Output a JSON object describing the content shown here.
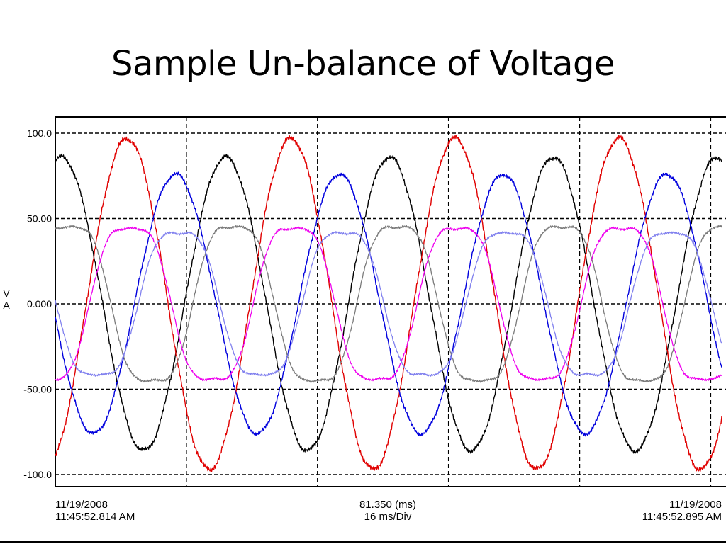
{
  "slide": {
    "title": "Sample Un-balance of Voltage"
  },
  "chart_data": {
    "type": "line",
    "ylabel": "V A",
    "ylabel_lines": [
      "V",
      "A"
    ],
    "ylim": [
      -100,
      100
    ],
    "yticks": [
      "100.0",
      "50.00",
      "0.000",
      "-50.00",
      "-100.0"
    ],
    "ytick_values": [
      100,
      50,
      0,
      -50,
      -100
    ],
    "x_units": "ms",
    "xlim": [
      0,
      81.35
    ],
    "x_division_ms": 16,
    "x_grid_ms": [
      16,
      32,
      48,
      64,
      80
    ],
    "grid": true,
    "frequency_hz": 50,
    "footer": {
      "start_date": "11/19/2008",
      "start_time": "11:45:52.814 AM",
      "span": "81.350 (ms)",
      "division": "16 ms/Div",
      "end_date": "11/19/2008",
      "end_time": "11:45:52.895 AM"
    },
    "series": [
      {
        "color": "#000000",
        "amplitude": 86,
        "phase_deg": 76,
        "stroke": 1.4
      },
      {
        "color": "#e00000",
        "amplitude": 97,
        "phase_deg": -68,
        "stroke": 1.4
      },
      {
        "color": "#0000dd",
        "amplitude": 76,
        "phase_deg": 186,
        "stroke": 1.4
      },
      {
        "color": "#7a7a7a",
        "amplitude": 51,
        "phase_deg": 58,
        "stroke": 1.3,
        "flat_top": true
      },
      {
        "color": "#ee00ee",
        "amplitude": 50,
        "phase_deg": -75,
        "stroke": 1.3,
        "flat_top": true
      },
      {
        "color": "#8080ee",
        "amplitude": 47,
        "phase_deg": 178,
        "stroke": 1.3,
        "flat_top": true
      }
    ]
  }
}
